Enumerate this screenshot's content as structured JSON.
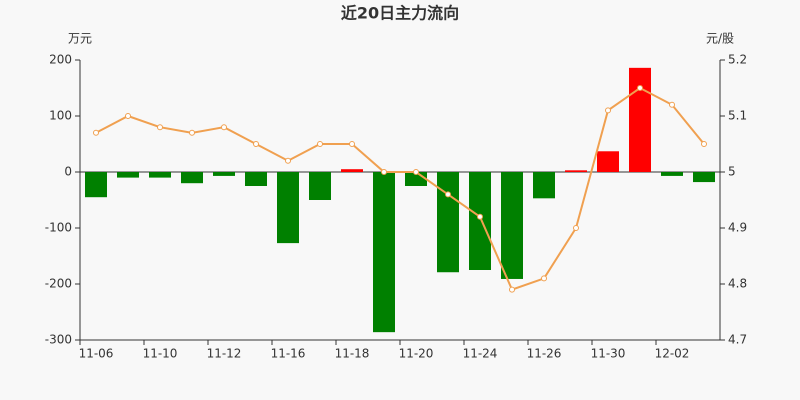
{
  "chart_data": {
    "type": "bar",
    "title": "近20日主力流向",
    "y_label": "万元",
    "y2_label": "元/股",
    "categories": [
      "11-06",
      null,
      "11-10",
      null,
      "11-12",
      null,
      "11-16",
      null,
      "11-18",
      null,
      "11-20",
      null,
      "11-24",
      null,
      "11-26",
      null,
      "11-30",
      null,
      "12-02",
      null
    ],
    "series": [
      {
        "type": "bar",
        "color": "#ff0000",
        "negative_color": "#008000",
        "values": [
          -45,
          -10,
          -10,
          -20,
          -7,
          -25,
          -127,
          -50,
          5,
          -286,
          -25,
          -179,
          -175,
          -191,
          -47,
          3,
          37,
          186,
          -7,
          -18
        ]
      },
      {
        "type": "line",
        "axis": "y2",
        "color": "#f0a050",
        "values": [
          5.07,
          5.1,
          5.08,
          5.07,
          5.08,
          5.05,
          5.02,
          5.05,
          5.05,
          5.0,
          5.0,
          4.96,
          4.92,
          4.79,
          4.81,
          4.9,
          5.11,
          5.15,
          5.12,
          5.05
        ]
      }
    ],
    "ylim": [
      -300,
      200
    ],
    "yticks": [
      200,
      100,
      0,
      -100,
      -200,
      -300
    ],
    "y2lim": [
      4.7,
      5.2
    ],
    "y2ticks": [
      5.2,
      5.1,
      5,
      4.9,
      4.8,
      4.7
    ]
  }
}
